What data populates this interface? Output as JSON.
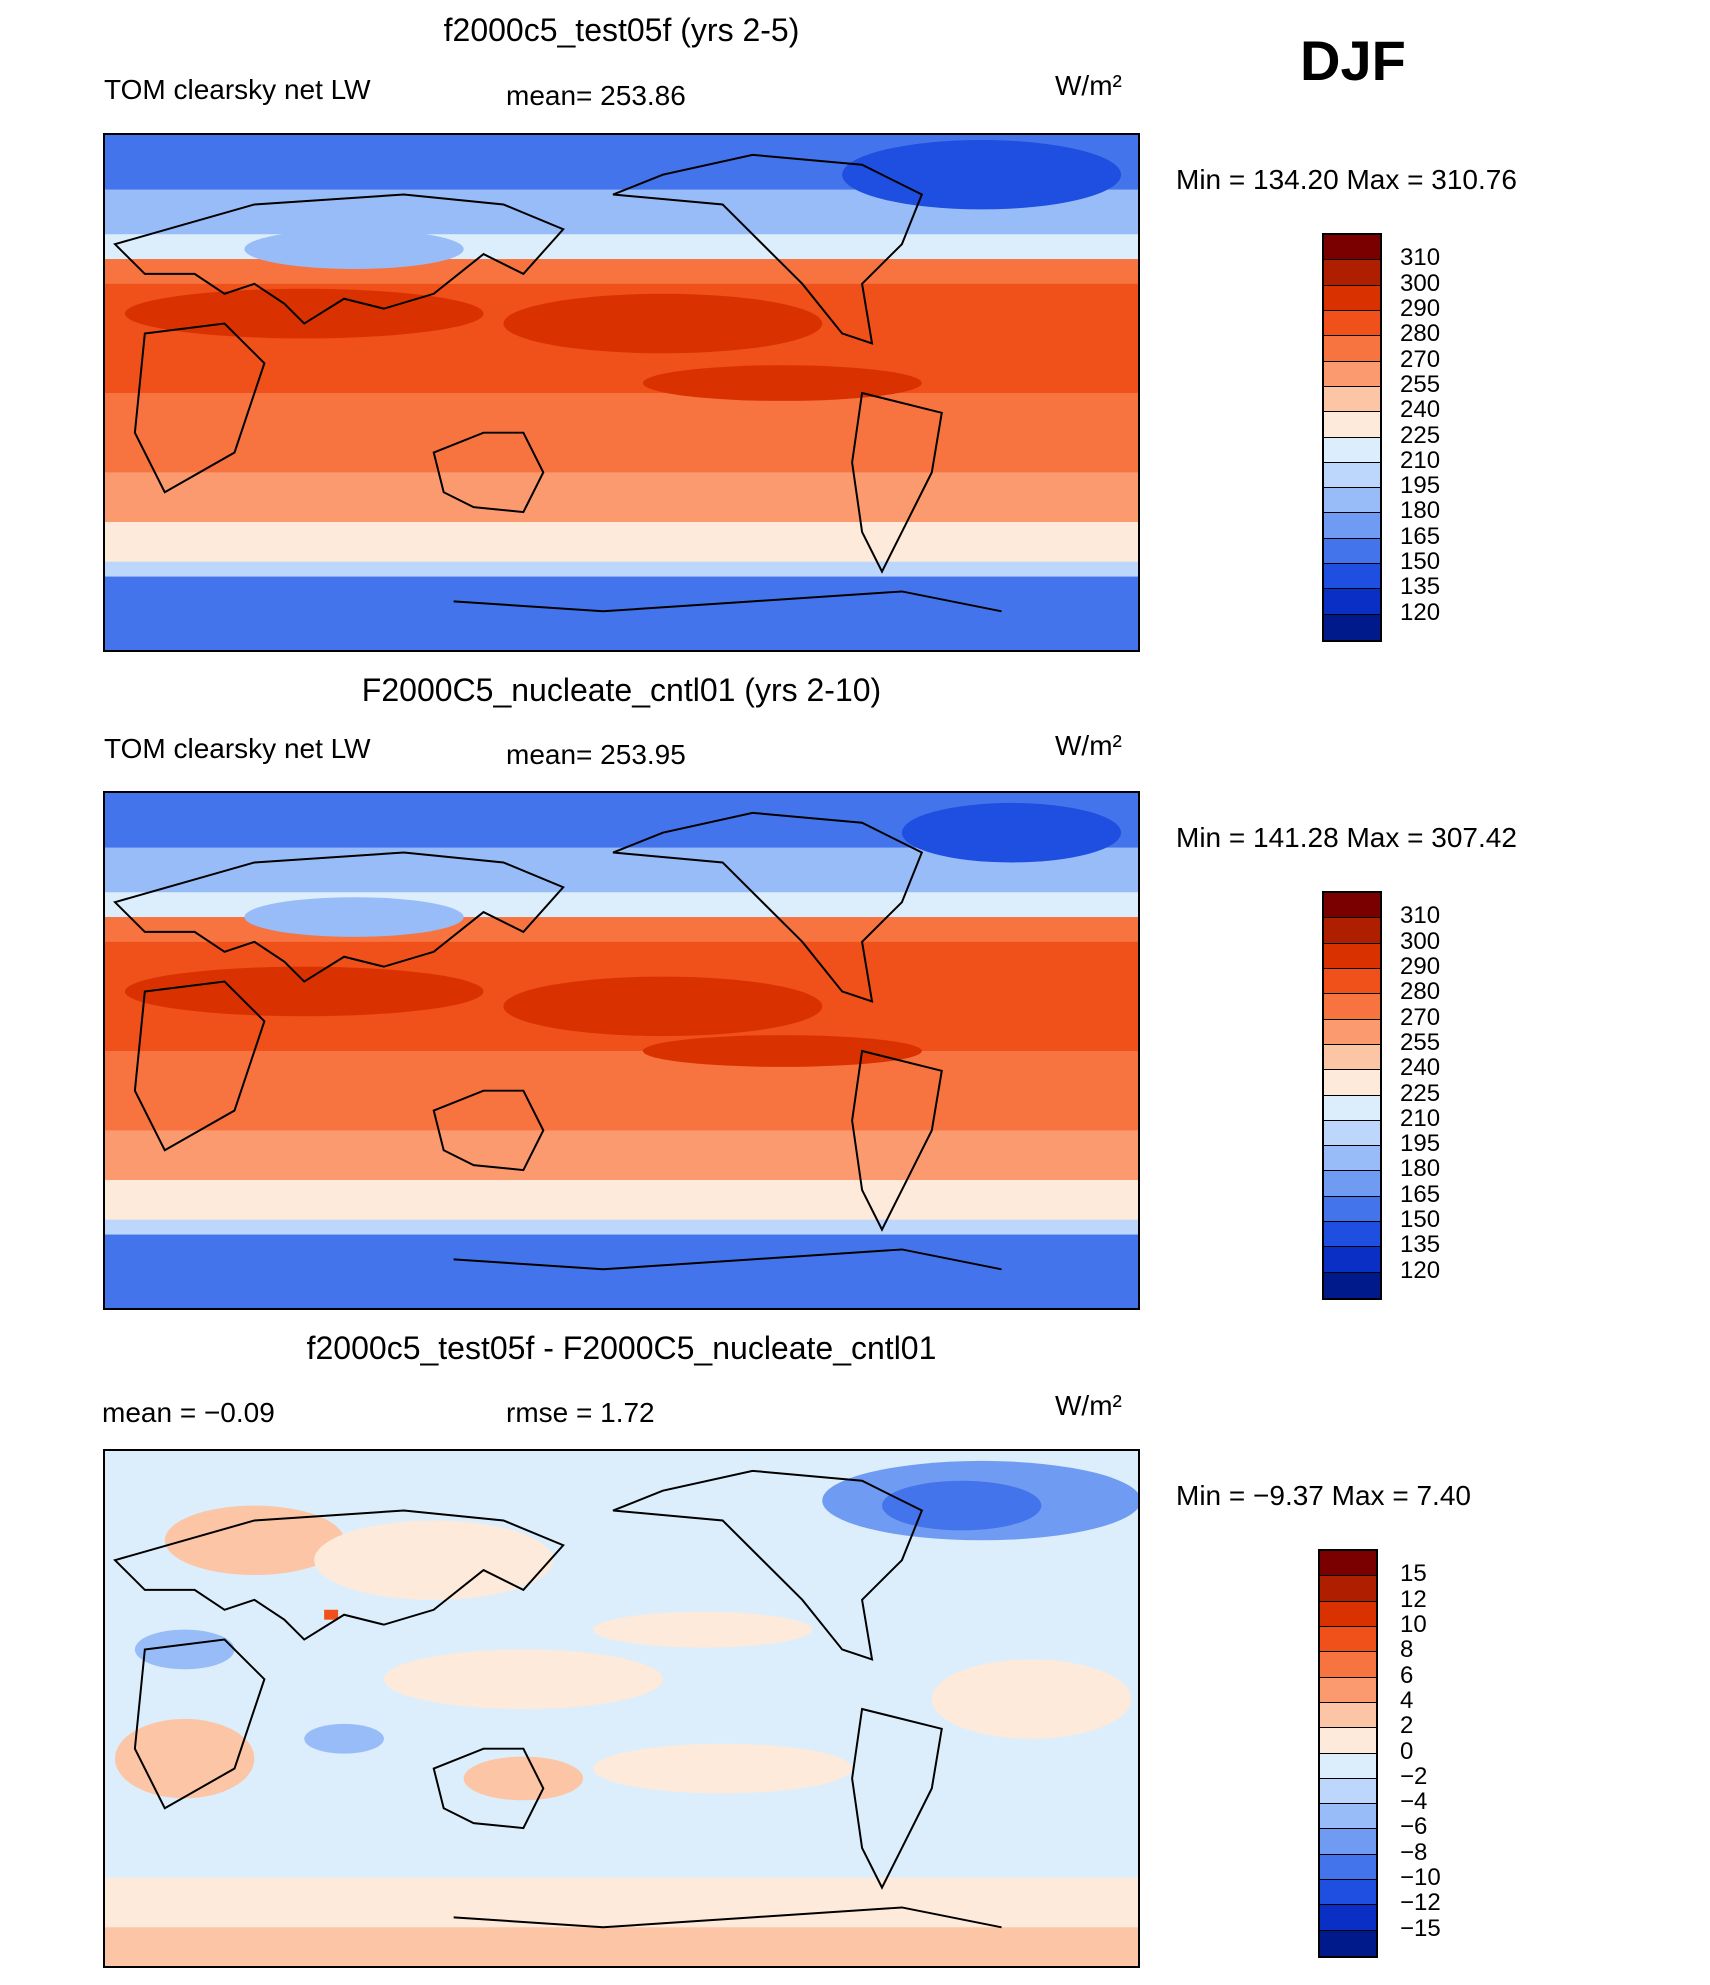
{
  "season": "DJF",
  "units": "W/m²",
  "panels": [
    {
      "title": "f2000c5_test05f (yrs 2-5)",
      "variable": "TOM clearsky net LW",
      "mean_text": "mean= 253.86",
      "minmax_text": "Min  =  134.20 Max  =  310.76"
    },
    {
      "title": "F2000C5_nucleate_cntl01 (yrs 2-10)",
      "variable": "TOM clearsky net LW",
      "mean_text": "mean= 253.95",
      "minmax_text": "Min  =  141.28 Max  =  307.42"
    },
    {
      "title": "f2000c5_test05f - F2000C5_nucleate_cntl01",
      "mean_text": "mean  =     −0.09",
      "rmse_text": "rmse  =      1.72",
      "minmax_text": "Min  =     −9.37 Max  =      7.40"
    }
  ],
  "colorbar_abs": {
    "labels": [
      "310",
      "300",
      "290",
      "280",
      "270",
      "255",
      "240",
      "225",
      "210",
      "195",
      "180",
      "165",
      "150",
      "135",
      "120"
    ],
    "colors": [
      "#7a0000",
      "#b01e00",
      "#d93200",
      "#f0501a",
      "#f7733f",
      "#fa9a6e",
      "#fbc5a6",
      "#fdeadb",
      "#dceefc",
      "#bcd7fb",
      "#98bcf8",
      "#6f9bf3",
      "#4474ec",
      "#1f4fe0",
      "#0a2fc4",
      "#001a8c"
    ]
  },
  "colorbar_diff": {
    "labels": [
      "15",
      "12",
      "10",
      "8",
      "6",
      "4",
      "2",
      "0",
      "−2",
      "−4",
      "−6",
      "−8",
      "−10",
      "−12",
      "−15"
    ],
    "colors": [
      "#7a0000",
      "#b01e00",
      "#d93200",
      "#f0501a",
      "#f7733f",
      "#fa9a6e",
      "#fbc5a6",
      "#fdeadb",
      "#dceefc",
      "#bcd7fb",
      "#98bcf8",
      "#6f9bf3",
      "#4474ec",
      "#1f4fe0",
      "#0a2fc4",
      "#001a8c"
    ]
  }
}
